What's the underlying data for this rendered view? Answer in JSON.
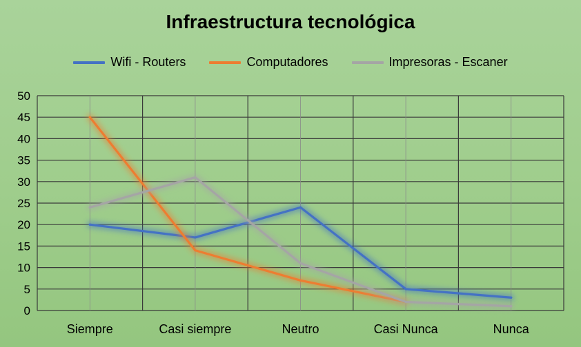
{
  "chart_data": {
    "type": "line",
    "title": "Infraestructura tecnológica",
    "categories": [
      "Siempre",
      "Casi siempre",
      "Neutro",
      "Casi Nunca",
      "Nunca"
    ],
    "yticks": [
      "0",
      "5",
      "10",
      "15",
      "20",
      "25",
      "30",
      "35",
      "40",
      "45",
      "50"
    ],
    "ylim": [
      0,
      50
    ],
    "grid": true,
    "legend_position": "top",
    "series": [
      {
        "name": "Wifi - Routers",
        "color": "#4472c4",
        "values": [
          20,
          17,
          24,
          5,
          3
        ]
      },
      {
        "name": "Computadores",
        "color": "#ed7d31",
        "values": [
          45,
          14,
          7,
          2,
          null
        ]
      },
      {
        "name": "Impresoras - Escaner",
        "color": "#a5a5a5",
        "values": [
          24,
          31,
          11,
          2,
          1
        ]
      }
    ]
  }
}
